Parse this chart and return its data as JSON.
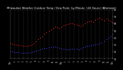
{
  "title": "Milwaukee Weather Outdoor Temp / Dew Point  by Minute  (24 Hours) (Alternate)",
  "title_fontsize": 2.8,
  "bg_color": "#000000",
  "plot_bg_color": "#000000",
  "fig_bg_color": "#000000",
  "grid_color": "#555555",
  "ylim": [
    10,
    80
  ],
  "xlim": [
    0,
    1440
  ],
  "yticks": [
    10,
    20,
    30,
    40,
    50,
    60,
    70,
    80
  ],
  "ytick_labels": [
    "10",
    "20",
    "30",
    "40",
    "50",
    "60",
    "70",
    "80"
  ],
  "xtick_positions": [
    0,
    60,
    120,
    180,
    240,
    300,
    360,
    420,
    480,
    540,
    600,
    660,
    720,
    780,
    840,
    900,
    960,
    1020,
    1080,
    1140,
    1200,
    1260,
    1320,
    1380,
    1440
  ],
  "xtick_labels": [
    "12a",
    "1",
    "2",
    "3",
    "4",
    "5",
    "6",
    "7",
    "8",
    "9",
    "10",
    "11",
    "12p",
    "1",
    "2",
    "3",
    "4",
    "5",
    "6",
    "7",
    "8",
    "9",
    "10",
    "11",
    "12a"
  ],
  "temp_color": "#ff2222",
  "dew_color": "#4444ff",
  "marker_size": 0.8,
  "temp_data_x": [
    0,
    30,
    60,
    90,
    120,
    150,
    180,
    210,
    240,
    270,
    300,
    330,
    360,
    390,
    420,
    450,
    480,
    510,
    540,
    570,
    600,
    630,
    660,
    690,
    720,
    750,
    780,
    810,
    840,
    870,
    900,
    930,
    960,
    990,
    1020,
    1050,
    1080,
    1110,
    1140,
    1170,
    1200,
    1230,
    1260,
    1290,
    1320,
    1350,
    1380,
    1410,
    1440
  ],
  "temp_data_y": [
    32,
    31,
    30,
    30,
    29,
    29,
    28,
    28,
    28,
    29,
    30,
    32,
    35,
    38,
    40,
    42,
    45,
    47,
    49,
    51,
    53,
    55,
    54,
    53,
    55,
    57,
    58,
    59,
    60,
    60,
    59,
    58,
    57,
    56,
    58,
    60,
    62,
    63,
    63,
    62,
    65,
    67,
    68,
    66,
    64,
    67,
    65,
    63,
    62
  ],
  "dew_data_x": [
    0,
    30,
    60,
    90,
    120,
    150,
    180,
    210,
    240,
    270,
    300,
    330,
    360,
    390,
    420,
    450,
    480,
    510,
    540,
    570,
    600,
    630,
    660,
    690,
    720,
    750,
    780,
    810,
    840,
    870,
    900,
    930,
    960,
    990,
    1020,
    1050,
    1080,
    1110,
    1140,
    1170,
    1200,
    1230,
    1260,
    1290,
    1320,
    1350,
    1380,
    1410,
    1440
  ],
  "dew_data_y": [
    20,
    20,
    19,
    19,
    19,
    18,
    18,
    18,
    18,
    19,
    19,
    20,
    21,
    22,
    23,
    24,
    25,
    25,
    26,
    26,
    27,
    27,
    26,
    25,
    24,
    24,
    23,
    23,
    23,
    24,
    24,
    24,
    23,
    24,
    26,
    27,
    28,
    28,
    29,
    30,
    30,
    31,
    32,
    33,
    35,
    38,
    40,
    42,
    44
  ],
  "text_color": "#ffffff"
}
